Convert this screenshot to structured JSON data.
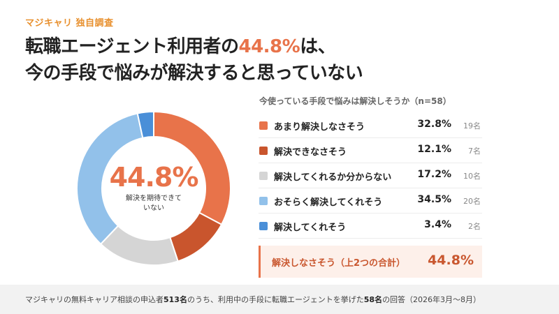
{
  "kicker": "マジキャリ 独自調査",
  "headline": {
    "line1_pre": "転職エージェント利用者の",
    "line1_accent": "44.8%",
    "line1_post": "は、",
    "line2": "今の手段で悩みが解決すると思っていない"
  },
  "chart_data": {
    "type": "pie",
    "style": "donut",
    "title": "今使っている手段で悩みは解決しそうか（n=58）",
    "center_value": "44.8%",
    "center_caption": "解決を期待できていない",
    "categories": [
      "あまり解決しなさそう",
      "解決できなさそう",
      "解決してくれるか分からない",
      "おそらく解決してくれそう",
      "解決してくれそう"
    ],
    "values": [
      32.8,
      12.1,
      17.2,
      34.5,
      3.4
    ],
    "counts": [
      "19名",
      "7名",
      "10名",
      "20名",
      "2名"
    ],
    "colors": [
      "#e8734a",
      "#c9552d",
      "#d5d5d5",
      "#92c1ea",
      "#4a8fd8"
    ],
    "start_angle_deg": 0,
    "direction": "clockwise"
  },
  "total": {
    "label": "解決しなさそう（上2つの合計）",
    "value": "44.8%"
  },
  "footer": {
    "pre": "マジキャリの無料キャリア相談の申込者",
    "n_all": "513名",
    "mid": "のうち、利用中の手段に転職エージェントを挙げた",
    "n_sub": "58名",
    "post": "の回答（2026年3月〜8月）"
  }
}
